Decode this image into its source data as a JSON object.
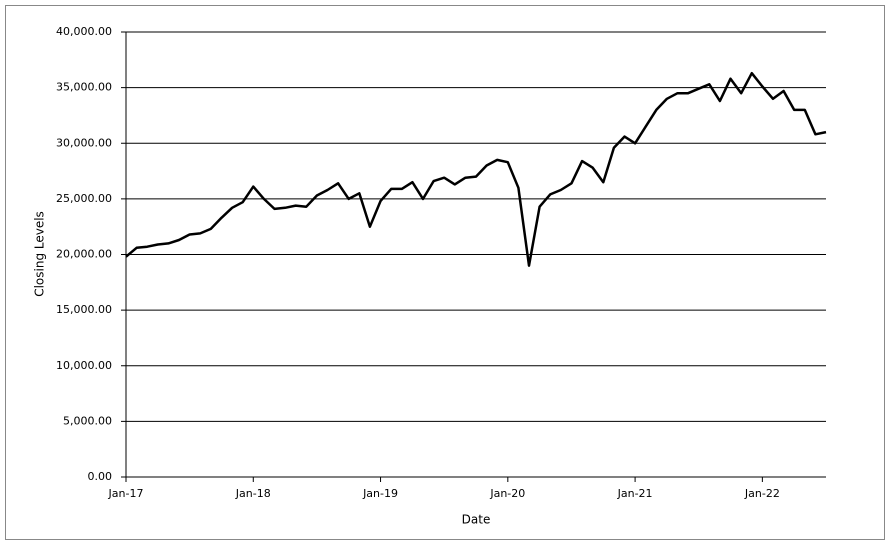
{
  "chart_data": {
    "type": "line",
    "x_label": "Date",
    "y_label": "Closing Levels",
    "x": [
      "2017-01",
      "2017-02",
      "2017-03",
      "2017-04",
      "2017-05",
      "2017-06",
      "2017-07",
      "2017-08",
      "2017-09",
      "2017-10",
      "2017-11",
      "2017-12",
      "2018-01",
      "2018-02",
      "2018-03",
      "2018-04",
      "2018-05",
      "2018-06",
      "2018-07",
      "2018-08",
      "2018-09",
      "2018-10",
      "2018-11",
      "2018-12",
      "2019-01",
      "2019-02",
      "2019-03",
      "2019-04",
      "2019-05",
      "2019-06",
      "2019-07",
      "2019-08",
      "2019-09",
      "2019-10",
      "2019-11",
      "2019-12",
      "2020-01",
      "2020-02",
      "2020-03",
      "2020-04",
      "2020-05",
      "2020-06",
      "2020-07",
      "2020-08",
      "2020-09",
      "2020-10",
      "2020-11",
      "2020-12",
      "2021-01",
      "2021-02",
      "2021-03",
      "2021-04",
      "2021-05",
      "2021-06",
      "2021-07",
      "2021-08",
      "2021-09",
      "2021-10",
      "2021-11",
      "2021-12",
      "2022-01",
      "2022-02",
      "2022-03",
      "2022-04",
      "2022-05",
      "2022-06",
      "2022-07"
    ],
    "series": [
      {
        "name": "Closing Levels",
        "color": "#000000",
        "values": [
          19800,
          20600,
          20700,
          20900,
          21000,
          21300,
          21800,
          21900,
          22300,
          23300,
          24200,
          24700,
          26100,
          25000,
          24100,
          24200,
          24400,
          24300,
          25300,
          25800,
          26400,
          25000,
          25500,
          22500,
          24800,
          25900,
          25900,
          26500,
          25000,
          26600,
          26900,
          26300,
          26900,
          27000,
          28000,
          28500,
          28300,
          26000,
          19000,
          24300,
          25400,
          25800,
          26400,
          28400,
          27800,
          26500,
          29600,
          30600,
          30000,
          31500,
          33000,
          34000,
          34500,
          34500,
          34900,
          35300,
          33800,
          35800,
          34500,
          36300,
          35100,
          34000,
          34700,
          33000,
          33000,
          30800,
          31000
        ]
      }
    ],
    "xlim": [
      "2017-01",
      "2022-07"
    ],
    "xticks": [
      {
        "value": "2017-01",
        "label": "Jan-17"
      },
      {
        "value": "2018-01",
        "label": "Jan-18"
      },
      {
        "value": "2019-01",
        "label": "Jan-19"
      },
      {
        "value": "2020-01",
        "label": "Jan-20"
      },
      {
        "value": "2021-01",
        "label": "Jan-21"
      },
      {
        "value": "2022-01",
        "label": "Jan-22"
      }
    ],
    "ylim": [
      0,
      40000
    ],
    "yticks": [
      {
        "value": 0,
        "label": "0.00"
      },
      {
        "value": 5000,
        "label": "5,000.00"
      },
      {
        "value": 10000,
        "label": "10,000.00"
      },
      {
        "value": 15000,
        "label": "15,000.00"
      },
      {
        "value": 20000,
        "label": "20,000.00"
      },
      {
        "value": 25000,
        "label": "25,000.00"
      },
      {
        "value": 30000,
        "label": "30,000.00"
      },
      {
        "value": 35000,
        "label": "35,000.00"
      },
      {
        "value": 40000,
        "label": "40,000.00"
      }
    ],
    "grid": true
  }
}
